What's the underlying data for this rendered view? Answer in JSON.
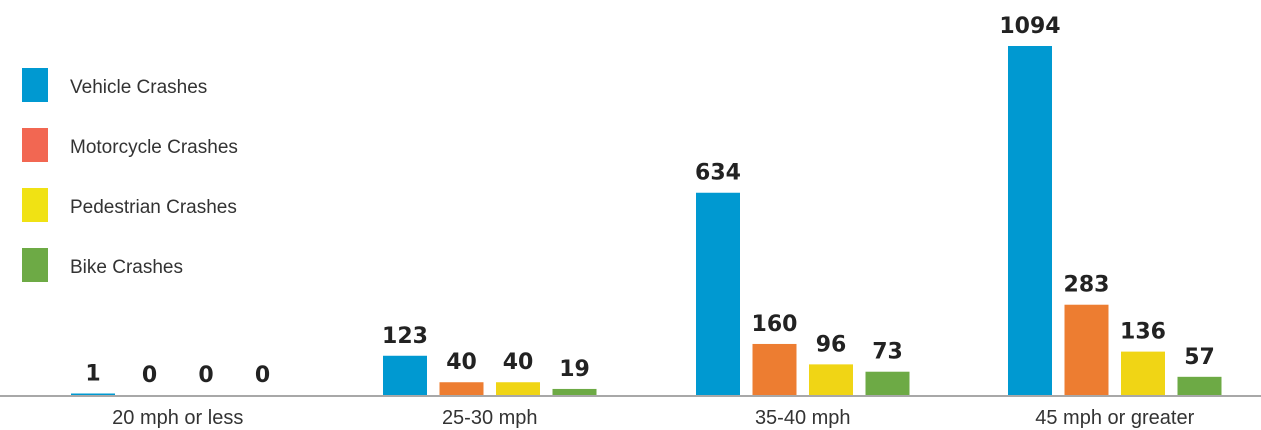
{
  "chart_data": {
    "type": "bar",
    "title": "",
    "xlabel": "",
    "ylabel": "",
    "categories": [
      "20 mph or less",
      "25-30 mph",
      "35-40 mph",
      "45 mph or greater"
    ],
    "series": [
      {
        "name": "Vehicle Crashes",
        "color": "#0099D1",
        "values": [
          1,
          123,
          634,
          1094
        ]
      },
      {
        "name": "Motorcycle Crashes",
        "color": "#ED7D31",
        "values": [
          0,
          40,
          160,
          283
        ]
      },
      {
        "name": "Pedestrian Crashes",
        "color": "#F0D515",
        "values": [
          0,
          40,
          96,
          136
        ]
      },
      {
        "name": "Bike Crashes",
        "color": "#6DAA45",
        "values": [
          0,
          19,
          73,
          57
        ]
      }
    ],
    "legend": {
      "position": "left",
      "entries": [
        {
          "label": "Vehicle Crashes",
          "color": "#0099D1"
        },
        {
          "label": "Motorcycle Crashes",
          "color": "#F26752"
        },
        {
          "label": "Pedestrian Crashes",
          "color": "#F0E214"
        },
        {
          "label": "Bike Crashes",
          "color": "#6DAA45"
        }
      ]
    },
    "ylim": [
      0,
      1094
    ],
    "grid": false,
    "data_labels": true
  }
}
